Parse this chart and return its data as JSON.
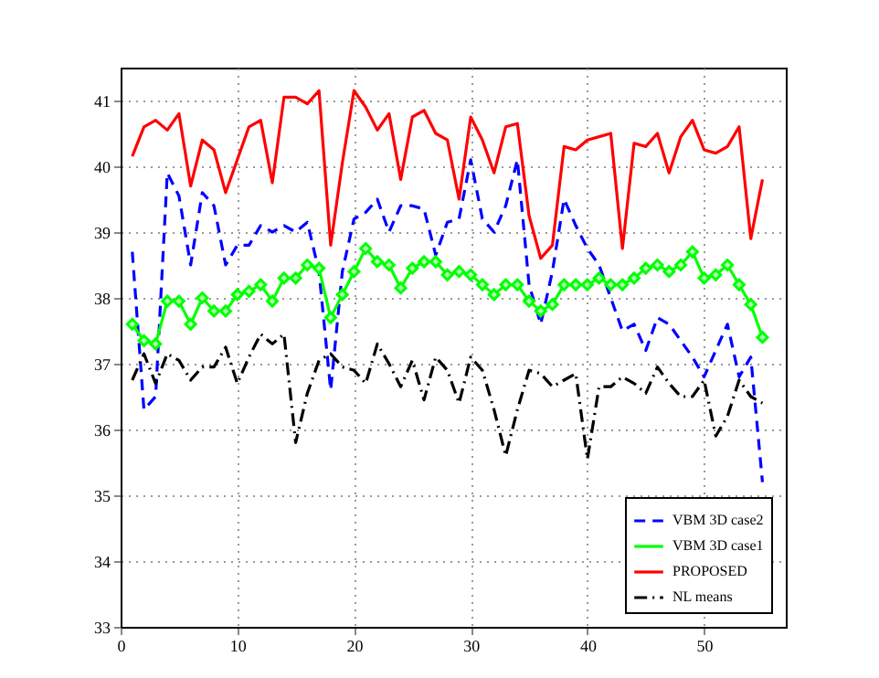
{
  "chart_data": {
    "type": "line",
    "x": [
      1,
      2,
      3,
      4,
      5,
      6,
      7,
      8,
      9,
      10,
      11,
      12,
      13,
      14,
      15,
      16,
      17,
      18,
      19,
      20,
      21,
      22,
      23,
      24,
      25,
      26,
      27,
      28,
      29,
      30,
      31,
      32,
      33,
      34,
      35,
      36,
      37,
      38,
      39,
      40,
      41,
      42,
      43,
      44,
      45,
      46,
      47,
      48,
      49,
      50,
      51,
      52,
      53,
      54,
      55
    ],
    "xlim": [
      0,
      57
    ],
    "xticks": [
      0,
      10,
      20,
      30,
      40,
      50
    ],
    "ylim": [
      33,
      41.5
    ],
    "yticks": [
      33,
      34,
      35,
      36,
      37,
      38,
      39,
      40,
      41
    ],
    "grid": true,
    "legend": "bottom right",
    "series": [
      {
        "name": "VBM 3D case2",
        "color": "#0000ff",
        "line_style": "dashed",
        "marker": "none",
        "values": [
          38.7,
          36.3,
          36.5,
          39.9,
          39.55,
          38.5,
          39.6,
          39.4,
          38.5,
          38.8,
          38.8,
          39.1,
          39,
          39.1,
          39,
          39.15,
          38.4,
          36.6,
          38.4,
          39.2,
          39.3,
          39.5,
          39,
          39.4,
          39.4,
          39.35,
          38.65,
          39.15,
          39.2,
          40.1,
          39.2,
          39,
          39.4,
          40.1,
          38.2,
          37.6,
          38.4,
          39.5,
          39.1,
          38.75,
          38.5,
          38,
          37.5,
          37.6,
          37.2,
          37.7,
          37.6,
          37.35,
          37.1,
          36.8,
          37.2,
          37.6,
          36.8,
          37.1,
          35.2
        ]
      },
      {
        "name": "VBM 3D case1",
        "color": "#00ff00",
        "line_style": "solid",
        "marker": "diamond",
        "values": [
          37.6,
          37.35,
          37.3,
          37.95,
          37.95,
          37.6,
          38,
          37.8,
          37.8,
          38.05,
          38.1,
          38.2,
          37.95,
          38.3,
          38.3,
          38.5,
          38.45,
          37.7,
          38.05,
          38.4,
          38.75,
          38.55,
          38.5,
          38.15,
          38.45,
          38.55,
          38.55,
          38.35,
          38.4,
          38.35,
          38.2,
          38.05,
          38.2,
          38.2,
          37.95,
          37.8,
          37.9,
          38.2,
          38.2,
          38.2,
          38.3,
          38.2,
          38.2,
          38.3,
          38.45,
          38.5,
          38.4,
          38.5,
          38.7,
          38.3,
          38.35,
          38.5,
          38.2,
          37.9,
          37.4
        ]
      },
      {
        "name": "PROPOSED",
        "color": "#ff0000",
        "line_style": "solid",
        "marker": "none",
        "values": [
          40.15,
          40.6,
          40.7,
          40.55,
          40.8,
          39.7,
          40.4,
          40.25,
          39.6,
          40.1,
          40.6,
          40.7,
          39.75,
          41.05,
          41.05,
          40.95,
          41.15,
          38.8,
          40.05,
          41.15,
          40.9,
          40.55,
          40.8,
          39.8,
          40.75,
          40.85,
          40.5,
          40.4,
          39.5,
          40.75,
          40.4,
          39.9,
          40.6,
          40.65,
          39.25,
          38.6,
          38.8,
          40.3,
          40.25,
          40.4,
          40.45,
          40.5,
          38.75,
          40.35,
          40.3,
          40.5,
          39.9,
          40.45,
          40.7,
          40.25,
          40.2,
          40.3,
          40.6,
          38.9,
          39.8
        ]
      },
      {
        "name": "NL means",
        "color": "#000000",
        "line_style": "dashdot",
        "marker": "none",
        "values": [
          36.75,
          37.15,
          36.7,
          37.15,
          37.05,
          36.75,
          36.95,
          36.95,
          37.25,
          36.7,
          37.1,
          37.45,
          37.3,
          37.45,
          35.8,
          36.55,
          37.05,
          37.15,
          36.95,
          36.9,
          36.7,
          37.3,
          37,
          36.65,
          37.05,
          36.45,
          37.1,
          36.9,
          36.4,
          37.1,
          36.9,
          36.3,
          35.6,
          36.3,
          36.9,
          36.85,
          36.65,
          36.75,
          36.85,
          35.55,
          36.65,
          36.65,
          36.8,
          36.7,
          36.55,
          36.95,
          36.7,
          36.5,
          36.5,
          36.75,
          35.9,
          36.2,
          36.75,
          36.5,
          36.4
        ]
      }
    ]
  }
}
